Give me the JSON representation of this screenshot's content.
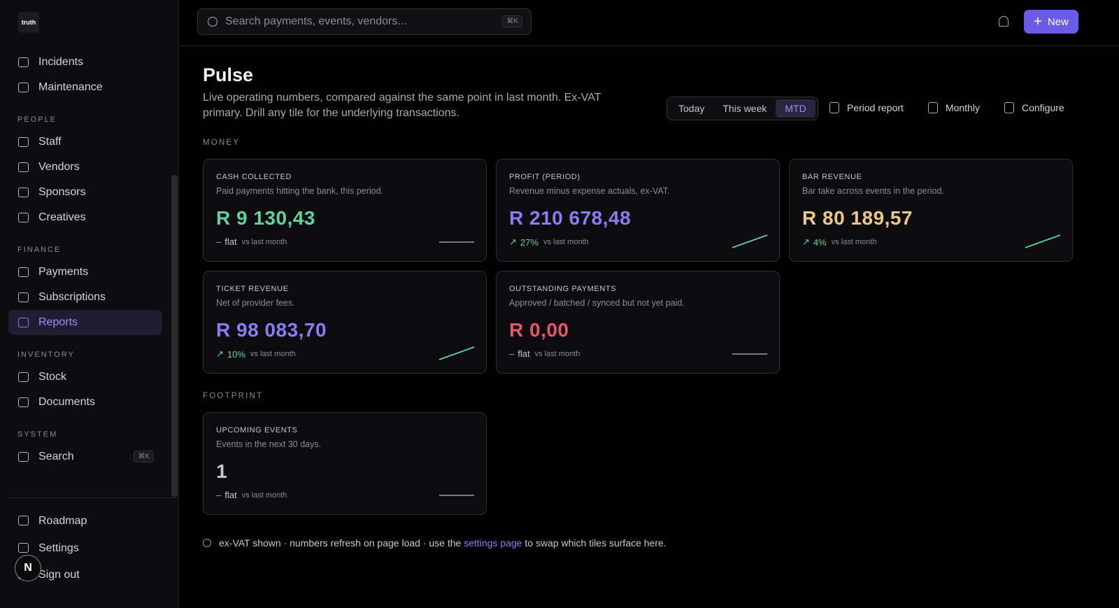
{
  "sidebar": {
    "logo": "truth",
    "top_items": [
      {
        "label": "Incidents"
      },
      {
        "label": "Maintenance"
      }
    ],
    "sections": [
      {
        "title": "PEOPLE",
        "items": [
          {
            "label": "Staff"
          },
          {
            "label": "Vendors"
          },
          {
            "label": "Sponsors"
          },
          {
            "label": "Creatives"
          }
        ]
      },
      {
        "title": "FINANCE",
        "items": [
          {
            "label": "Payments"
          },
          {
            "label": "Subscriptions"
          },
          {
            "label": "Reports",
            "active": true
          }
        ]
      },
      {
        "title": "INVENTORY",
        "items": [
          {
            "label": "Stock"
          },
          {
            "label": "Documents"
          }
        ]
      },
      {
        "title": "SYSTEM",
        "items": [
          {
            "label": "Search",
            "shortcut": "⌘K"
          }
        ]
      }
    ],
    "footer_items": [
      {
        "label": "Roadmap"
      },
      {
        "label": "Settings"
      },
      {
        "label": "Sign out"
      }
    ],
    "avatar": "N"
  },
  "topbar": {
    "search_placeholder": "Search payments, events, vendors...",
    "shortcut": "⌘K",
    "new_button": "New"
  },
  "header": {
    "title": "Pulse",
    "description": "Live operating numbers, compared against the same point in last month. Ex-VAT primary. Drill any tile for the underlying transactions.",
    "periods": [
      {
        "label": "Today"
      },
      {
        "label": "This week"
      },
      {
        "label": "MTD",
        "active": true
      }
    ],
    "actions": [
      "Period report",
      "Monthly",
      "Configure"
    ]
  },
  "sections": [
    {
      "title": "MONEY",
      "tiles": [
        {
          "label": "CASH COLLECTED",
          "description": "Paid payments hitting the bank, this period.",
          "value": "R 9 130,43",
          "color": "#5fd1a0",
          "trend": "flat",
          "direction": "flat",
          "comparison": "vs last month"
        },
        {
          "label": "PROFIT (PERIOD)",
          "description": "Revenue minus expense actuals, ex-VAT.",
          "value": "R 210 678,48",
          "color": "#8b7cf6",
          "trend": "27%",
          "direction": "up",
          "comparison": "vs last month"
        },
        {
          "label": "BAR REVENUE",
          "description": "Bar take across events in the period.",
          "value": "R 80 189,57",
          "color": "#e9c788",
          "trend": "4%",
          "direction": "up",
          "comparison": "vs last month"
        },
        {
          "label": "TICKET REVENUE",
          "description": "Net of provider fees.",
          "value": "R 98 083,70",
          "color": "#8b7cf6",
          "trend": "10%",
          "direction": "up",
          "comparison": "vs last month"
        },
        {
          "label": "OUTSTANDING PAYMENTS",
          "description": "Approved / batched / synced but not yet paid.",
          "value": "R 0,00",
          "color": "#e5566a",
          "trend": "flat",
          "direction": "flat",
          "comparison": "vs last month"
        }
      ]
    },
    {
      "title": "FOOTPRINT",
      "tiles": [
        {
          "label": "UPCOMING EVENTS",
          "description": "Events in the next 30 days.",
          "value": "1",
          "color": "#c9c9cf",
          "trend": "flat",
          "direction": "flat",
          "comparison": "vs last month"
        }
      ]
    }
  ],
  "footer_note": {
    "before": "ex-VAT shown · numbers refresh on page load · use the",
    "link": "settings page",
    "after": "to swap which tiles surface here."
  }
}
